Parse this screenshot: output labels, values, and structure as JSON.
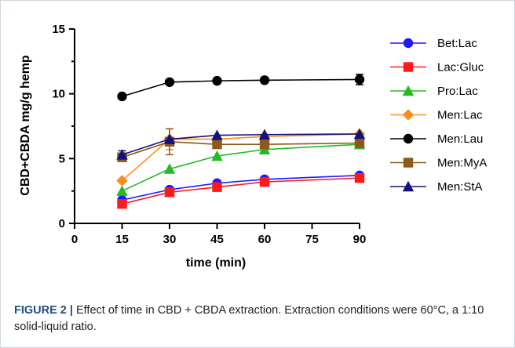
{
  "chart_data": {
    "type": "line",
    "xlabel": "time (min)",
    "ylabel": "CBD+CBDA mg/g hemp",
    "xlim": [
      0,
      90
    ],
    "ylim": [
      0,
      15
    ],
    "xticks": [
      0,
      15,
      30,
      45,
      60,
      75,
      90
    ],
    "yticks": [
      0,
      5,
      10,
      15
    ],
    "grid": false,
    "legend_position": "right",
    "x": [
      15,
      30,
      45,
      60,
      90
    ],
    "series": [
      {
        "name": "Bet:Lac",
        "color": "#1a1aff",
        "marker": "circle",
        "values": [
          1.8,
          2.6,
          3.1,
          3.4,
          3.7
        ]
      },
      {
        "name": "Lac:Gluc",
        "color": "#ff1a1a",
        "marker": "square",
        "values": [
          1.5,
          2.4,
          2.8,
          3.2,
          3.5
        ]
      },
      {
        "name": "Pro:Lac",
        "color": "#22bb22",
        "marker": "triangle",
        "values": [
          2.5,
          4.2,
          5.2,
          5.7,
          6.1
        ]
      },
      {
        "name": "Men:Lac",
        "color": "#ff8c1a",
        "marker": "diamond",
        "values": [
          3.3,
          6.5,
          6.5,
          6.7,
          6.9
        ],
        "error": [
          0,
          0.8,
          0,
          0,
          0
        ]
      },
      {
        "name": "Men:Lau",
        "color": "#000000",
        "marker": "circle",
        "values": [
          9.8,
          10.9,
          11.0,
          11.05,
          11.1
        ],
        "error": [
          0,
          0,
          0,
          0,
          0.4
        ]
      },
      {
        "name": "Men:MyA",
        "color": "#8b5a1a",
        "marker": "square",
        "values": [
          5.1,
          6.3,
          6.1,
          6.1,
          6.2
        ],
        "error": [
          0,
          1.0,
          0,
          0,
          0
        ]
      },
      {
        "name": "Men:StA",
        "color": "#12127a",
        "marker": "triangle",
        "values": [
          5.3,
          6.5,
          6.8,
          6.85,
          6.9
        ],
        "error": [
          0.3,
          0,
          0,
          0,
          0
        ]
      }
    ]
  },
  "caption": {
    "label": "FIGURE 2 |",
    "text": " Effect of time in CBD + CBDA extraction. Extraction conditions were 60°C, a 1:10 solid-liquid ratio."
  }
}
